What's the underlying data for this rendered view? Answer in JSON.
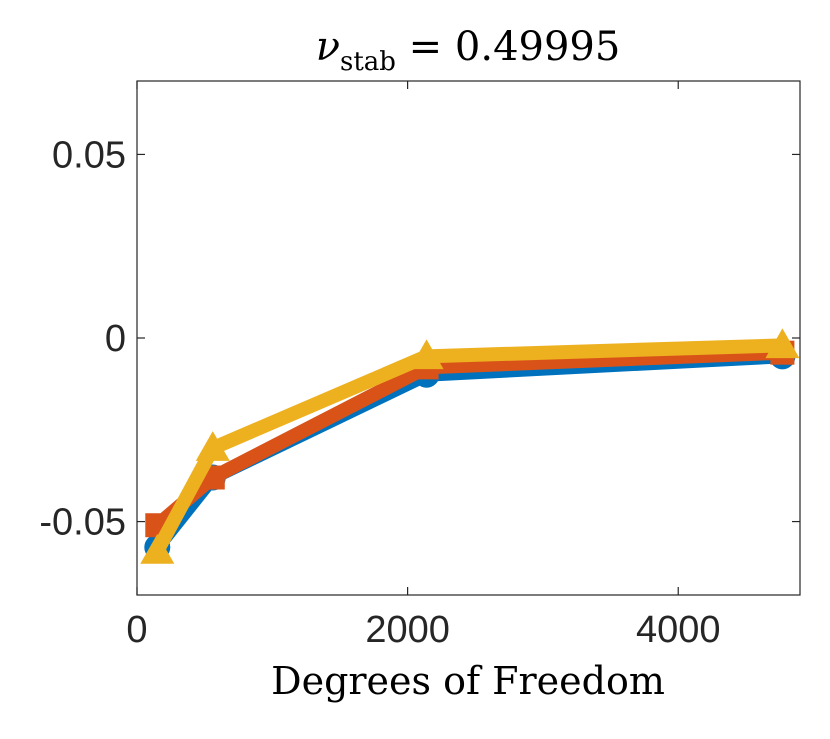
{
  "chart_data": {
    "type": "line",
    "title": {
      "symbol": "ν",
      "subscript": "stab",
      "rest": " = 0.49995"
    },
    "xlabel": "Degrees of Freedom",
    "ylabel": "",
    "xlim": [
      0,
      4900
    ],
    "ylim": [
      -0.07,
      0.07
    ],
    "xticks": [
      0,
      2000,
      4000
    ],
    "xtick_labels": [
      "0",
      "2000",
      "4000"
    ],
    "yticks": [
      -0.05,
      0,
      0.05
    ],
    "ytick_labels": [
      "-0.05",
      "0",
      "0.05"
    ],
    "grid": false,
    "series": [
      {
        "color": "#0072BD",
        "marker": "circle",
        "x": [
          150,
          560,
          2140,
          4770
        ],
        "y": [
          -0.057,
          -0.038,
          -0.01,
          -0.005
        ]
      },
      {
        "color": "#D95319",
        "marker": "square",
        "x": [
          150,
          560,
          2140,
          4770
        ],
        "y": [
          -0.051,
          -0.038,
          -0.008,
          -0.004
        ]
      },
      {
        "color": "#EDB120",
        "marker": "triangle",
        "x": [
          150,
          560,
          2140,
          4770
        ],
        "y": [
          -0.058,
          -0.03,
          -0.005,
          -0.002
        ]
      }
    ]
  }
}
